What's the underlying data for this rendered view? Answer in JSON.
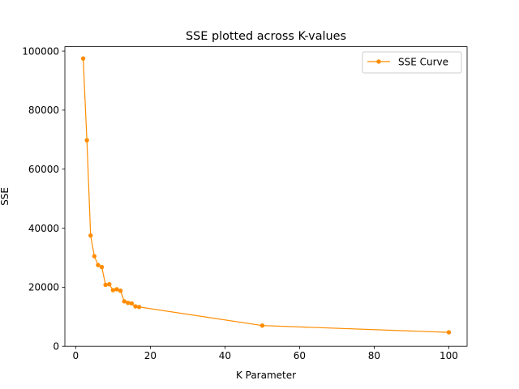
{
  "chart_data": {
    "type": "line",
    "title": "SSE plotted across K-values",
    "xlabel": "K Parameter",
    "ylabel": "SSE",
    "xlim": [
      -2.9,
      104.9
    ],
    "ylim": [
      0,
      101500
    ],
    "xticks": [
      0,
      20,
      40,
      60,
      80,
      100
    ],
    "yticks": [
      0,
      20000,
      40000,
      60000,
      80000,
      100000
    ],
    "grid": false,
    "legend_position": "top-right",
    "series": [
      {
        "name": "SSE Curve",
        "color": "#ff8c00",
        "marker": "circle",
        "x": [
          2,
          3,
          4,
          5,
          6,
          7,
          8,
          9,
          10,
          11,
          12,
          13,
          14,
          15,
          16,
          17,
          50,
          100
        ],
        "y": [
          97500,
          69800,
          37500,
          30500,
          27500,
          26800,
          20800,
          21000,
          19000,
          19300,
          18800,
          15200,
          14700,
          14500,
          13500,
          13300,
          7000,
          4700
        ]
      }
    ]
  }
}
